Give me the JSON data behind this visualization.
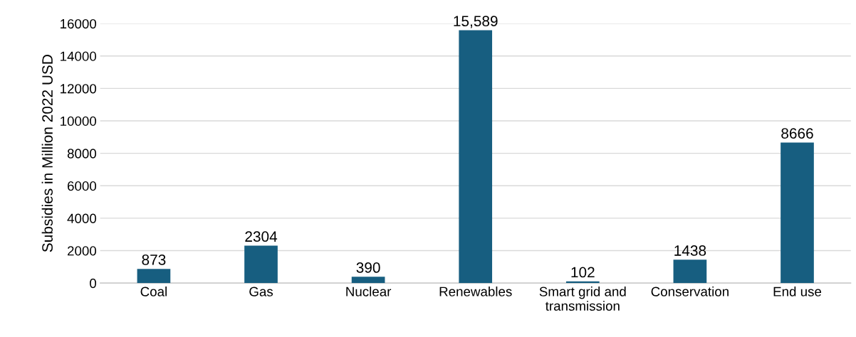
{
  "chart_data": {
    "type": "bar",
    "ylabel": "Subsidies in Million 2022 USD",
    "categories": [
      "Coal",
      "Gas",
      "Nuclear",
      "Renewables",
      "Smart grid and\ntransmission",
      "Conservation",
      "End use"
    ],
    "values": [
      873,
      2304,
      390,
      15589,
      102,
      1438,
      8666
    ],
    "value_labels": [
      "873",
      "2304",
      "390",
      "15,589",
      "102",
      "1438",
      "8666"
    ],
    "color": "#175e80",
    "ylim": [
      0,
      16000
    ],
    "yticks": [
      0,
      2000,
      4000,
      6000,
      8000,
      10000,
      12000,
      14000,
      16000
    ],
    "grid": "y",
    "legend": false
  }
}
